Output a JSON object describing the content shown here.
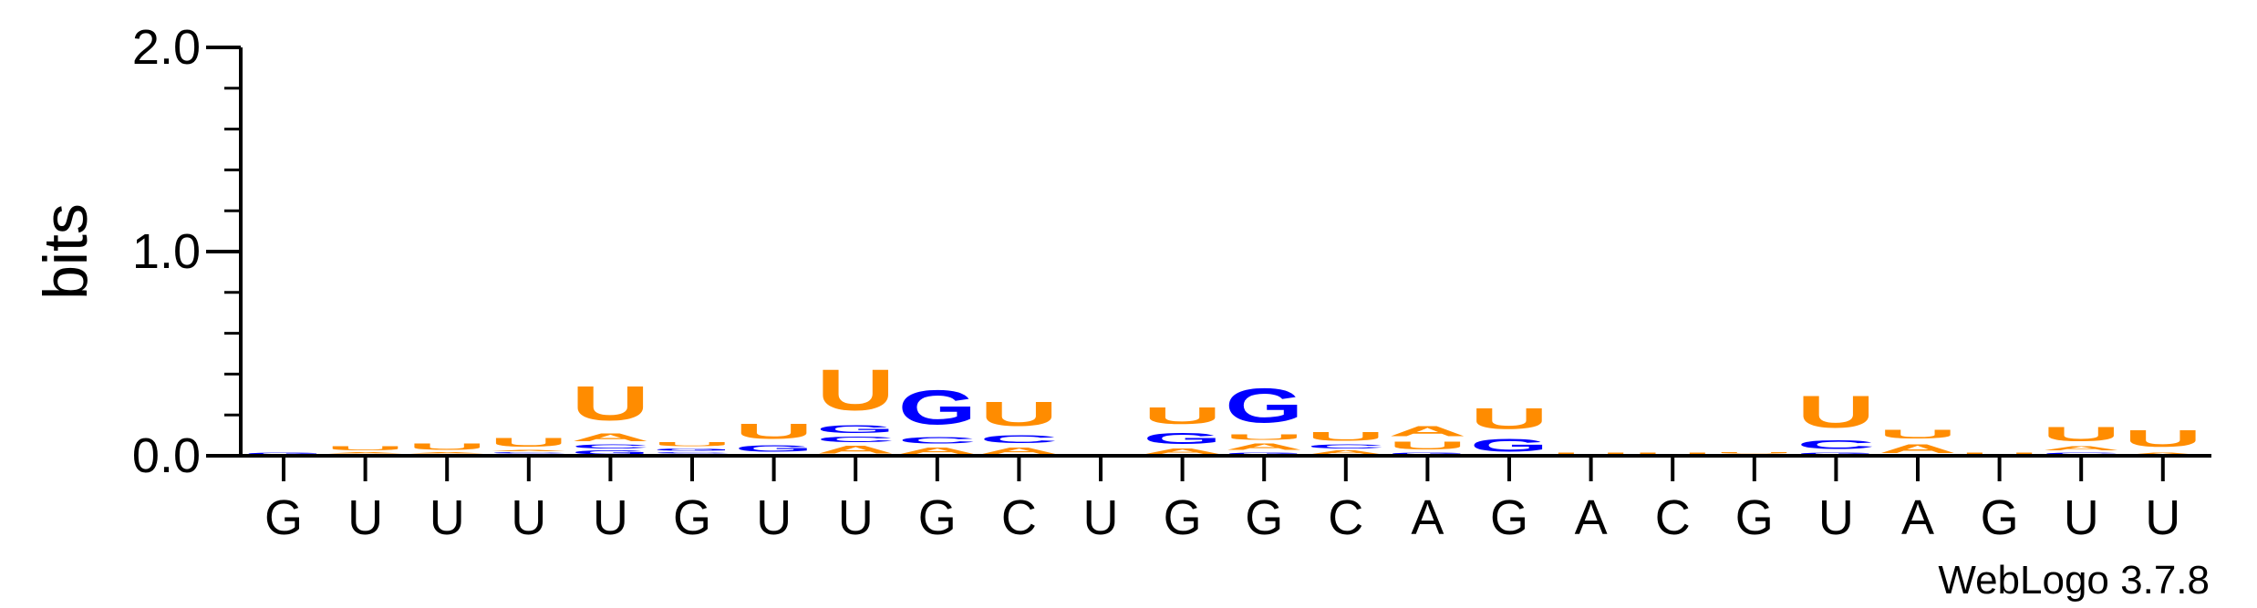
{
  "chart_data": {
    "type": "sequence_logo",
    "ylabel": "bits",
    "ylim": [
      0,
      2.0
    ],
    "yticks": [
      "0.0",
      "1.0",
      "2.0"
    ],
    "credit": "WebLogo 3.7.8",
    "colors": {
      "U": "#FF8C00",
      "G": "#0000FF",
      "A": "#FF8C00",
      "C": "#0000FF"
    },
    "positions": [
      {
        "label": "G",
        "stack": [
          [
            "G",
            0.02
          ]
        ]
      },
      {
        "label": "U",
        "stack": [
          [
            "G",
            0.01
          ],
          [
            "A",
            0.01
          ],
          [
            "U",
            0.03
          ]
        ]
      },
      {
        "label": "U",
        "stack": [
          [
            "G",
            0.01
          ],
          [
            "A",
            0.01
          ],
          [
            "U",
            0.05
          ]
        ]
      },
      {
        "label": "U",
        "stack": [
          [
            "G",
            0.01
          ],
          [
            "C",
            0.01
          ],
          [
            "A",
            0.01
          ],
          [
            "U",
            0.07
          ]
        ]
      },
      {
        "label": "U",
        "stack": [
          [
            "G",
            0.03
          ],
          [
            "C",
            0.03
          ],
          [
            "A",
            0.06
          ],
          [
            "U",
            0.27
          ]
        ]
      },
      {
        "label": "G",
        "stack": [
          [
            "A",
            0.01
          ],
          [
            "C",
            0.01
          ],
          [
            "G",
            0.02
          ],
          [
            "U",
            0.03
          ]
        ]
      },
      {
        "label": "U",
        "stack": [
          [
            "A",
            0.01
          ],
          [
            "G",
            0.05
          ],
          [
            "U",
            0.12
          ]
        ]
      },
      {
        "label": "U",
        "stack": [
          [
            "A",
            0.06
          ],
          [
            "C",
            0.04
          ],
          [
            "G",
            0.06
          ],
          [
            "U",
            0.32
          ]
        ]
      },
      {
        "label": "G",
        "stack": [
          [
            "A",
            0.05
          ],
          [
            "C",
            0.05
          ],
          [
            "G",
            0.27
          ]
        ]
      },
      {
        "label": "C",
        "stack": [
          [
            "A",
            0.05
          ],
          [
            "C",
            0.06
          ],
          [
            "U",
            0.19
          ]
        ]
      },
      {
        "label": "U",
        "stack": []
      },
      {
        "label": "G",
        "stack": [
          [
            "A",
            0.04
          ],
          [
            "G",
            0.09
          ],
          [
            "U",
            0.13
          ]
        ]
      },
      {
        "label": "G",
        "stack": [
          [
            "G",
            0.02
          ],
          [
            "A",
            0.05
          ],
          [
            "U",
            0.04
          ],
          [
            "G",
            0.27
          ]
        ]
      },
      {
        "label": "C",
        "stack": [
          [
            "A",
            0.03
          ],
          [
            "C",
            0.03
          ],
          [
            "U",
            0.07
          ]
        ]
      },
      {
        "label": "A",
        "stack": [
          [
            "G",
            0.02
          ],
          [
            "U",
            0.06
          ],
          [
            "A",
            0.08
          ]
        ]
      },
      {
        "label": "G",
        "stack": [
          [
            "G",
            0.1
          ],
          [
            "U",
            0.16
          ]
        ]
      },
      {
        "label": "A",
        "stack": [
          [
            "U",
            0.02
          ]
        ]
      },
      {
        "label": "C",
        "stack": [
          [
            "U",
            0.02
          ]
        ]
      },
      {
        "label": "G",
        "stack": [
          [
            "G",
            0.01
          ],
          [
            "U",
            0.01
          ]
        ]
      },
      {
        "label": "U",
        "stack": [
          [
            "G",
            0.02
          ],
          [
            "C",
            0.07
          ],
          [
            "U",
            0.25
          ]
        ]
      },
      {
        "label": "A",
        "stack": [
          [
            "A",
            0.07
          ],
          [
            "U",
            0.07
          ]
        ]
      },
      {
        "label": "G",
        "stack": [
          [
            "U",
            0.02
          ]
        ]
      },
      {
        "label": "U",
        "stack": [
          [
            "C",
            0.02
          ],
          [
            "A",
            0.03
          ],
          [
            "U",
            0.11
          ]
        ]
      },
      {
        "label": "U",
        "stack": [
          [
            "A",
            0.02
          ],
          [
            "U",
            0.13
          ]
        ]
      }
    ]
  }
}
